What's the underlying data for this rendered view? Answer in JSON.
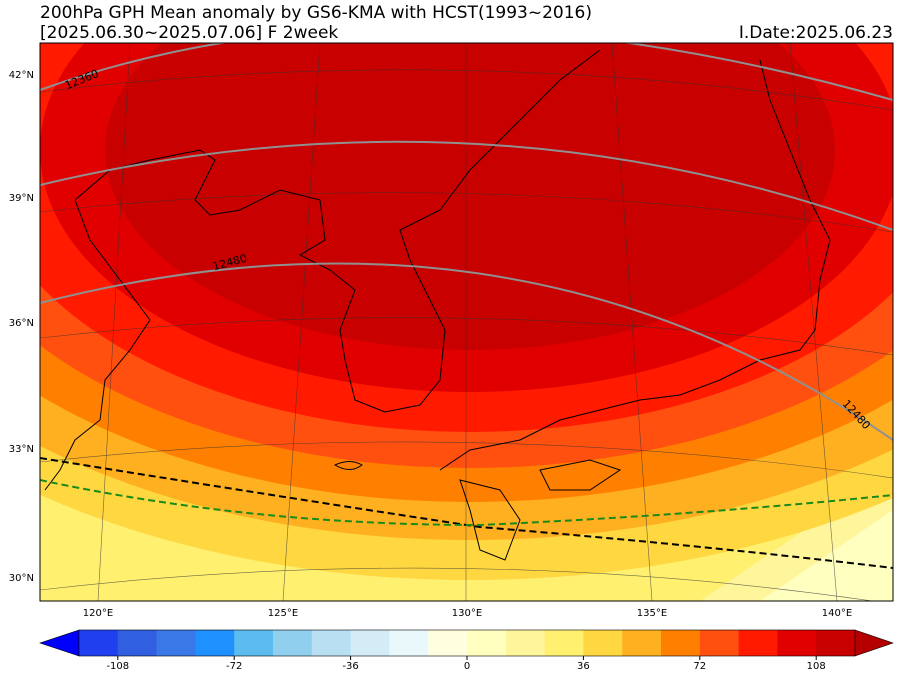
{
  "header": {
    "title": "200hPa GPH Mean anomaly by GS6-KMA with HCST(1993~2016)",
    "period": "[2025.06.30~2025.07.06] F 2week",
    "init_date": "I.Date:2025.06.23"
  },
  "map": {
    "lat_labels": [
      "42°N",
      "39°N",
      "36°N",
      "33°N",
      "30°N"
    ],
    "lon_labels": [
      "120°E",
      "125°E",
      "130°E",
      "135°E",
      "140°E"
    ],
    "contour_labels": [
      "12360",
      "12480",
      "12480"
    ]
  },
  "colorbar": {
    "lim": [
      -120,
      120
    ],
    "ticks": [
      -108,
      -72,
      -36,
      0,
      36,
      72,
      108
    ],
    "under_color": "#0000ff",
    "over_color": "#b40000",
    "colors": [
      "#2040f0",
      "#3060e0",
      "#3a78e8",
      "#1e90ff",
      "#5cbcf0",
      "#90d0ee",
      "#b8dff2",
      "#d4ecf6",
      "#e8f8fb",
      "#ffffe0",
      "#ffffc0",
      "#fff59a",
      "#fff070",
      "#ffd740",
      "#ffb020",
      "#ff8000",
      "#ff5010",
      "#ff1a00",
      "#e00000",
      "#c80000"
    ]
  }
}
